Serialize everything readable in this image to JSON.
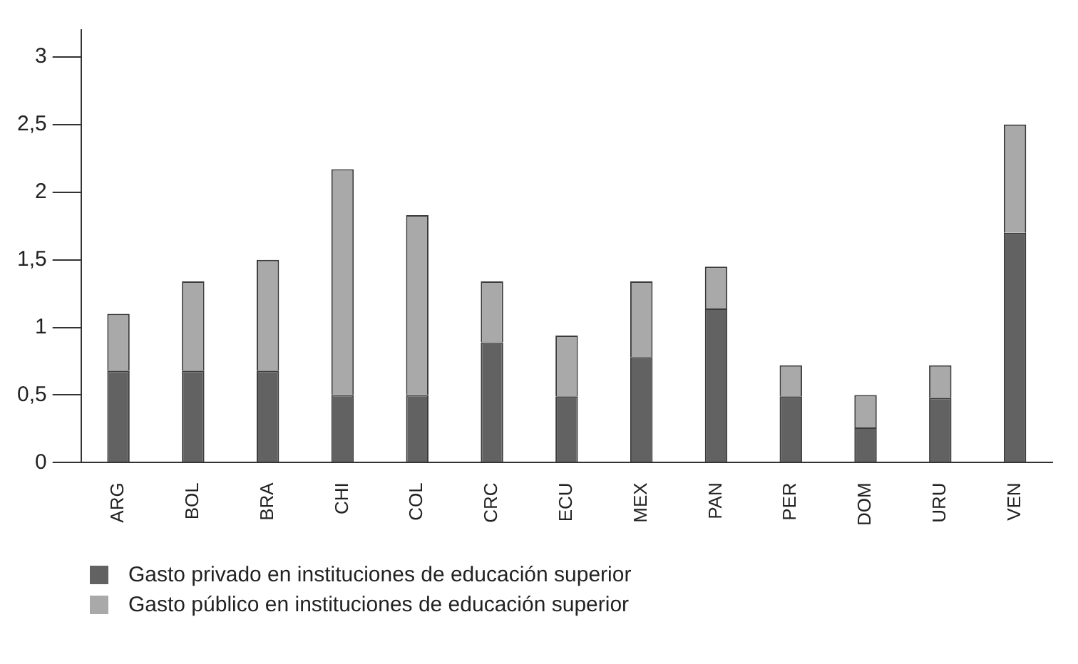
{
  "chart_data": {
    "type": "bar",
    "stacked": true,
    "categories": [
      "ARG",
      "BOL",
      "BRA",
      "CHI",
      "COL",
      "CRC",
      "ECU",
      "MEX",
      "PAN",
      "PER",
      "DOM",
      "URU",
      "VEN"
    ],
    "series": [
      {
        "name": "Gasto privado en instituciones de educación superior",
        "color": "#626262",
        "values": [
          0.68,
          0.68,
          0.68,
          0.5,
          0.5,
          0.89,
          0.49,
          0.78,
          1.14,
          0.49,
          0.26,
          0.48,
          1.7
        ]
      },
      {
        "name": "Gasto público en instituciones de educación superior",
        "color": "#a9a9a9",
        "values": [
          0.42,
          0.66,
          0.82,
          1.67,
          1.33,
          0.45,
          0.45,
          0.56,
          0.31,
          0.23,
          0.24,
          0.24,
          0.8
        ]
      }
    ],
    "ylim": [
      0,
      3.2
    ],
    "yticks": [
      0,
      {
        "value": 0.5,
        "label": "0,5"
      },
      1,
      {
        "value": 1.5,
        "label": "1,5"
      },
      2,
      {
        "value": 2.5,
        "label": "2,5"
      },
      3
    ],
    "grid": false,
    "legend": "bottom left"
  }
}
